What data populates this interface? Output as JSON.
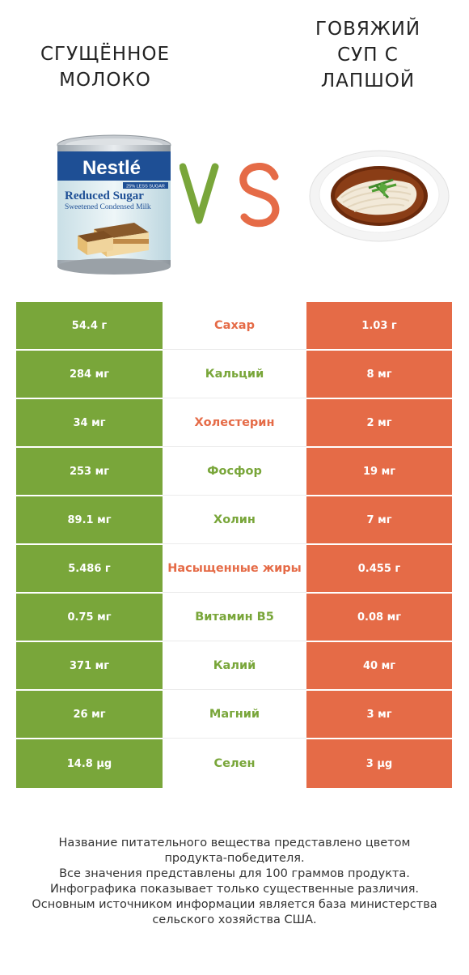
{
  "header": {
    "left_title_line1": "СГУЩЁННОЕ",
    "left_title_line2": "МОЛОКО",
    "right_title_line1": "ГОВЯЖИЙ",
    "right_title_line2": "СУП С",
    "right_title_line3": "ЛАПШОЙ",
    "vs_label": "VS"
  },
  "can_label": {
    "brand": "Nestlé",
    "badge": "25% LESS SUGAR",
    "line1": "Reduced Sugar",
    "line2": "Sweetened Condensed Milk"
  },
  "colors": {
    "left_winner": "#79a63a",
    "right_winner": "#e56b47"
  },
  "rows": [
    {
      "left": "54.4 г",
      "name": "Сахар",
      "right": "1.03 г",
      "winner": "right"
    },
    {
      "left": "284 мг",
      "name": "Кальций",
      "right": "8 мг",
      "winner": "left"
    },
    {
      "left": "34 мг",
      "name": "Холестерин",
      "right": "2 мг",
      "winner": "right"
    },
    {
      "left": "253 мг",
      "name": "Фосфор",
      "right": "19 мг",
      "winner": "left"
    },
    {
      "left": "89.1 мг",
      "name": "Холин",
      "right": "7 мг",
      "winner": "left"
    },
    {
      "left": "5.486 г",
      "name": "Насыщенные жиры",
      "right": "0.455 г",
      "winner": "right"
    },
    {
      "left": "0.75 мг",
      "name": "Витамин B5",
      "right": "0.08 мг",
      "winner": "left"
    },
    {
      "left": "371 мг",
      "name": "Калий",
      "right": "40 мг",
      "winner": "left"
    },
    {
      "left": "26 мг",
      "name": "Магний",
      "right": "3 мг",
      "winner": "left"
    },
    {
      "left": "14.8 µg",
      "name": "Селен",
      "right": "3 µg",
      "winner": "left"
    }
  ],
  "footer": {
    "line1": "Название питательного вещества представлено цветом",
    "line2": "продукта-победителя.",
    "line3": "Все значения представлены для 100 граммов продукта.",
    "line4": "Инфографика показывает только существенные различия.",
    "line5": "Основным источником информации является база министерства",
    "line6": "сельского хозяйства США."
  }
}
